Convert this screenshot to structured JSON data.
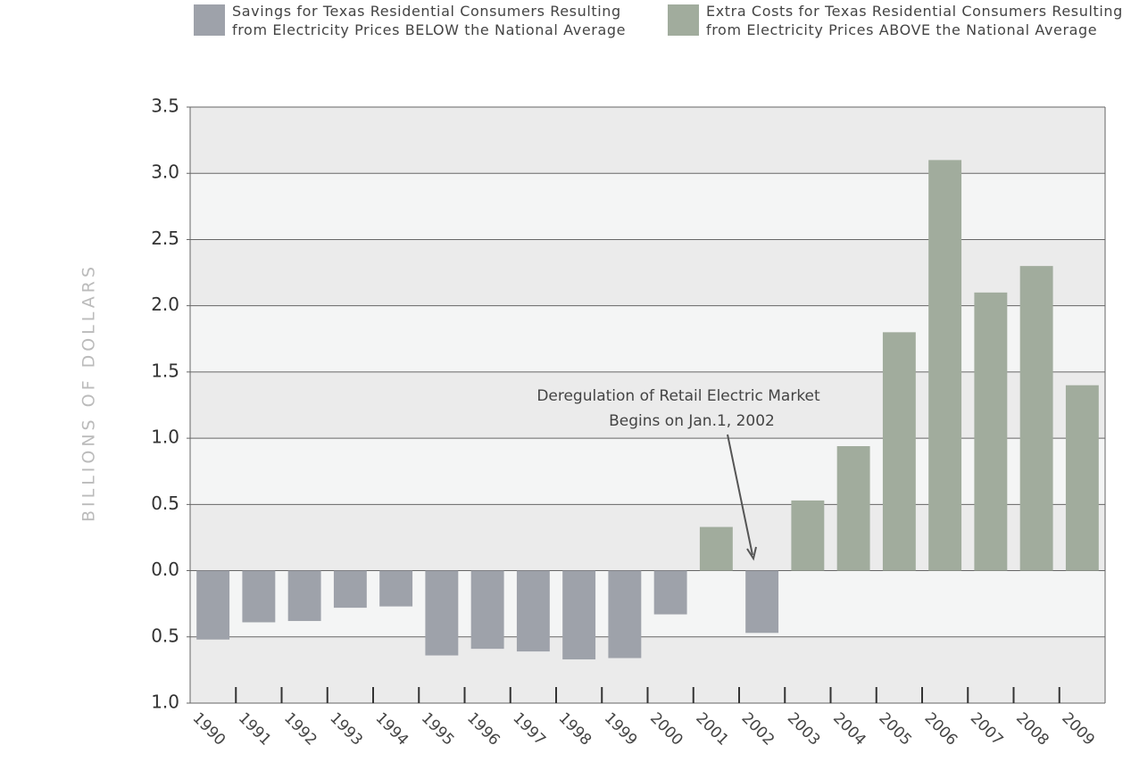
{
  "chart_data": {
    "type": "bar",
    "y_label": "BILLIONS OF DOLLARS",
    "annotation": [
      "Deregulation of Retail Electric Market",
      "Begins on Jan.1, 2002"
    ],
    "categories": [
      "1990",
      "1991",
      "1992",
      "1993",
      "1994",
      "1995",
      "1996",
      "1997",
      "1998",
      "1999",
      "2000",
      "2001",
      "2002",
      "2003",
      "2004",
      "2005",
      "2006",
      "2007",
      "2008",
      "2009"
    ],
    "series": [
      {
        "name": "Savings for Texas Residential Consumers Resulting from Electricity Prices BELOW the National Average",
        "color": "#9ea2aa",
        "values": [
          -0.52,
          -0.39,
          -0.38,
          -0.28,
          -0.27,
          -0.64,
          -0.59,
          -0.61,
          -0.67,
          -0.66,
          -0.33,
          null,
          -0.47,
          null,
          null,
          null,
          null,
          null,
          null,
          null
        ]
      },
      {
        "name": "Extra Costs for Texas Residential Consumers Resulting from Electricity Prices ABOVE the National Average",
        "color": "#a1ac9d",
        "values": [
          null,
          null,
          null,
          null,
          null,
          null,
          null,
          null,
          null,
          null,
          null,
          0.33,
          null,
          0.53,
          0.94,
          1.8,
          3.1,
          2.1,
          2.3,
          1.4
        ]
      }
    ],
    "ylim": [
      -1,
      3.5
    ],
    "yticks": [
      {
        "value": -1,
        "label": "1.0"
      },
      {
        "value": -0.5,
        "label": "0.5"
      },
      {
        "value": 0,
        "label": "0.0"
      },
      0.5,
      {
        "value": 1,
        "label": "1.0"
      },
      1.5,
      {
        "value": 2,
        "label": "2.0"
      },
      2.5,
      {
        "value": 3,
        "label": "3.0"
      },
      3.5
    ],
    "grid": true
  }
}
